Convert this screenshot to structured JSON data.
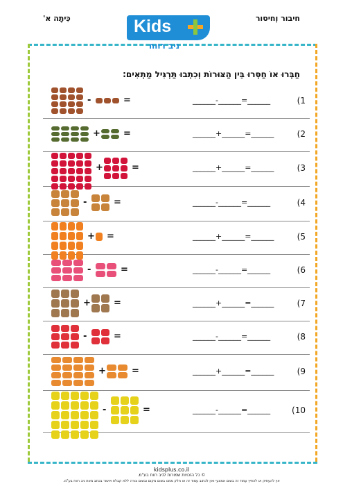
{
  "header": {
    "subject": "חיבור וְחיסור",
    "grade": "כִּיתָה א'",
    "logo_word": "Kids",
    "logo_sub": "ניב רווח"
  },
  "instruction": "חַבְּרוּ אוֹ חַסְּרוּ בֵּין הַצּוּרוֹת וְכִתְבוּ תַּרְגִּיל מַתְאִים:",
  "exercises": [
    {
      "num": "1)",
      "picture": "hamburger-icon",
      "op": "-",
      "eq": "______-______=______"
    },
    {
      "num": "2)",
      "picture": "cucumber-icon",
      "op": "+",
      "eq": "______+______=______"
    },
    {
      "num": "3)",
      "picture": "strawberry-icon",
      "op": "+",
      "eq": "______+______=______"
    },
    {
      "num": "4)",
      "picture": "hamantash-icon",
      "op": "-",
      "eq": "______-______=______"
    },
    {
      "num": "5)",
      "picture": "carrot-icon",
      "op": "+",
      "eq": "______+______=______"
    },
    {
      "num": "6)",
      "picture": "candy-icon",
      "op": "-",
      "eq": "______-______=______"
    },
    {
      "num": "7)",
      "picture": "bag-icon",
      "op": "+",
      "eq": "______+______=______"
    },
    {
      "num": "8)",
      "picture": "watermelon-icon",
      "op": "-",
      "eq": "______-______=______"
    },
    {
      "num": "9)",
      "picture": "bread-icon",
      "op": "+",
      "eq": "______+______=______"
    },
    {
      "num": "10)",
      "picture": "lemon-icon",
      "op": "-",
      "eq": "______-______=______"
    }
  ],
  "colors": {
    "hamburger-icon": "#a0522d",
    "cucumber-icon": "#556b2f",
    "strawberry-icon": "#d2143a",
    "hamantash-icon": "#c8843a",
    "carrot-icon": "#f08020",
    "candy-icon": "#e8507a",
    "bag-icon": "#a07850",
    "watermelon-icon": "#e0303a",
    "bread-icon": "#e88a30",
    "lemon-icon": "#e6d21a"
  },
  "footer": {
    "url": "kidsplus.co.il",
    "copyright": "© כל הזכויות שמורות לניב רווח בע\"מ.",
    "legal": "אין להעתיק או להפיץ עמוד זה בשום אמצעי ואין לכתוב עמוד זה או חלק ממנו בשום מקום ובשום צורה ללא קבלת אישור בכתב מאת ניב רווח בע\"מ."
  }
}
